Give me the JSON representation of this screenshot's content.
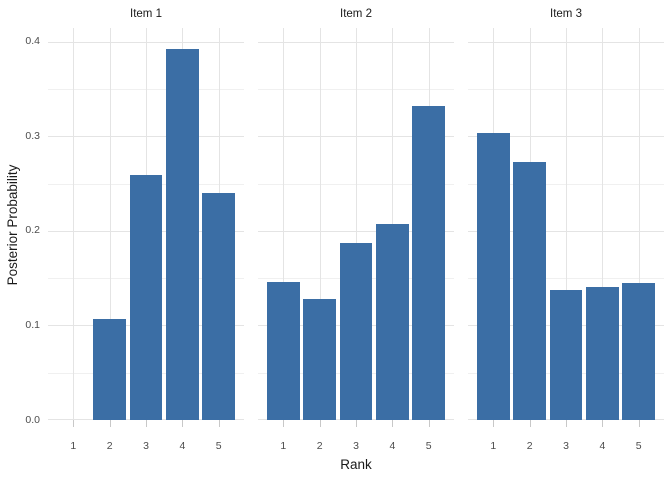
{
  "figure": {
    "background": "#ffffff",
    "bar_color": "#3B6EA5",
    "grid_major_color": "#e4e4e4",
    "grid_minor_color": "#f0f0f0",
    "axis_tick_color": "#c8c8c8",
    "tick_label_color": "#4d4d4d",
    "title_color": "#1a1a1a"
  },
  "chart_data": {
    "type": "bar",
    "title": "",
    "xlabel": "Rank",
    "ylabel": "Posterior Probability",
    "categories": [
      "1",
      "2",
      "3",
      "4",
      "5"
    ],
    "facets": [
      {
        "title": "Item 1",
        "values": [
          0,
          0.107,
          0.259,
          0.393,
          0.24
        ]
      },
      {
        "title": "Item 2",
        "values": [
          0.146,
          0.128,
          0.187,
          0.207,
          0.332
        ]
      },
      {
        "title": "Item 3",
        "values": [
          0.304,
          0.273,
          0.138,
          0.141,
          0.145
        ]
      }
    ],
    "y_major_ticks": [
      0.0,
      0.1,
      0.2,
      0.3,
      0.4
    ],
    "y_tick_labels": [
      "0.0",
      "0.1",
      "0.2",
      "0.3",
      "0.4"
    ],
    "y_minor_ticks": [
      0.05,
      0.15,
      0.25,
      0.35
    ],
    "ylim": [
      0,
      0.4148
    ],
    "x_units_range": [
      0.305,
      5.695
    ],
    "bar_width_units": 0.9,
    "grid": true,
    "legend": "none"
  }
}
